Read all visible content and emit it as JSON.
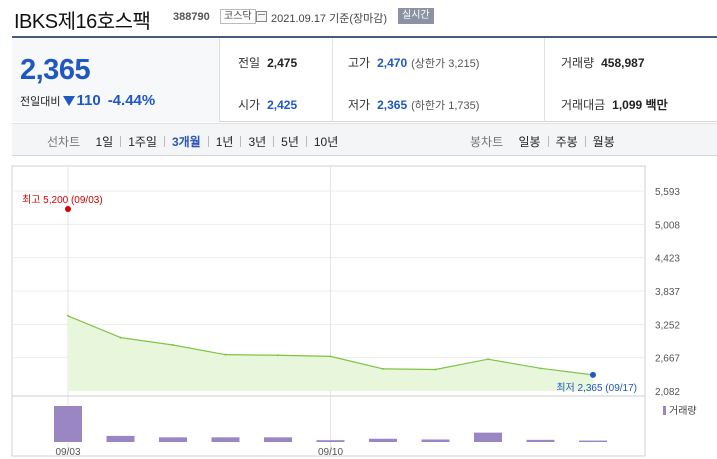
{
  "header": {
    "name": "IBKS제16호스팩",
    "code": "388790",
    "market": "코스닥",
    "date_text": "2021.09.17  기준(장마감)",
    "realtime": "실시간"
  },
  "price": {
    "current": "2,365",
    "change_label": "전일대비",
    "change_value": "110",
    "change_pct": "-4.44%",
    "direction": "down"
  },
  "stats": {
    "prev_close": {
      "label": "전일",
      "value": "2,475"
    },
    "open": {
      "label": "시가",
      "value": "2,425"
    },
    "high": {
      "label": "고가",
      "value": "2,470",
      "sub": "(상한가 3,215)"
    },
    "low": {
      "label": "저가",
      "value": "2,365",
      "sub": "(하한가 1,735)"
    },
    "volume": {
      "label": "거래량",
      "value": "458,987"
    },
    "amount": {
      "label": "거래대금",
      "value": "1,099 백만"
    }
  },
  "tabs": {
    "line_title": "선차트",
    "line_tabs": [
      "1일",
      "1주일",
      "3개월",
      "1년",
      "3년",
      "5년",
      "10년"
    ],
    "active_line_tab": "3개월",
    "candle_title": "봉차트",
    "candle_tabs": [
      "일봉",
      "주봉",
      "월봉"
    ]
  },
  "colors": {
    "price_blue": "#1f57c3",
    "high_red": "#d40000",
    "line_green": "#7ec444",
    "area_fill": "#e8f7dc",
    "volume_bar": "#9b86c4"
  },
  "chart_data": {
    "type": "area",
    "x_tick_labels": [
      "09/03",
      "09/10"
    ],
    "y_ticks": [
      "5,593",
      "5,008",
      "4,423",
      "3,837",
      "3,252",
      "2,667",
      "2,082"
    ],
    "ylim": [
      2082,
      5593
    ],
    "points": [
      {
        "date": "09/03",
        "close": 3400,
        "volume": 1.0
      },
      {
        "date": "09/06",
        "close": 3020,
        "volume": 0.17
      },
      {
        "date": "09/07",
        "close": 2890,
        "volume": 0.13
      },
      {
        "date": "09/08",
        "close": 2720,
        "volume": 0.13
      },
      {
        "date": "09/09",
        "close": 2710,
        "volume": 0.13
      },
      {
        "date": "09/10",
        "close": 2690,
        "volume": 0.05
      },
      {
        "date": "09/13",
        "close": 2470,
        "volume": 0.09
      },
      {
        "date": "09/14",
        "close": 2460,
        "volume": 0.07
      },
      {
        "date": "09/15",
        "close": 2640,
        "volume": 0.26
      },
      {
        "date": "09/16",
        "close": 2480,
        "volume": 0.06
      },
      {
        "date": "09/17",
        "close": 2365,
        "volume": 0.04
      }
    ],
    "high_marker": {
      "label": "최고",
      "value": "5,200",
      "date": "(09/03)"
    },
    "low_marker": {
      "label": "최저",
      "value": "2,365",
      "date": "(09/17)"
    },
    "legend": "거래량"
  }
}
